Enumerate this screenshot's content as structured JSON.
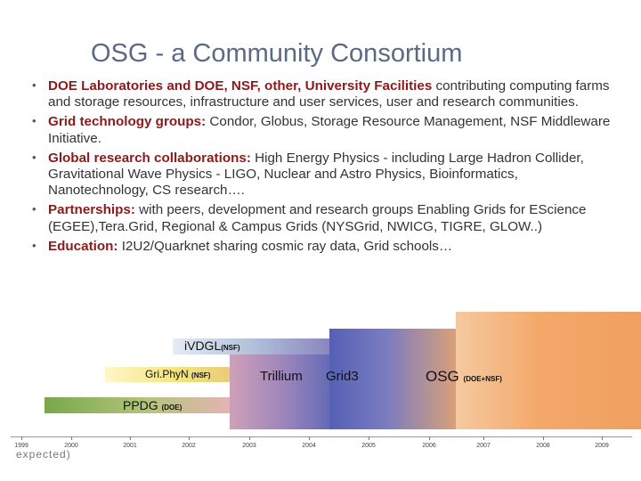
{
  "title": "OSG  - a Community Consortium",
  "bullets": [
    {
      "bold": "DOE Laboratories and DOE, NSF, other, University Facilities",
      "text": " contributing computing farms and storage resources, infrastructure and user services, user and research communities."
    },
    {
      "bold": "Grid technology groups:",
      "text": " Condor, Globus, Storage Resource Management, NSF Middleware Initiative."
    },
    {
      "bold": "Global research collaborations:",
      "text": "  High Energy Physics - including Large Hadron Collider, Gravitational Wave Physics - LIGO, Nuclear  and  Astro Physics, Bioinformatics, Nanotechnology, CS research…."
    },
    {
      "bold": "Partnerships:",
      "text": " with peers, development and research groups Enabling Grids for EScience (EGEE),Tera.Grid, Regional & Campus Grids (NYSGrid, NWICG, TIGRE, GLOW..)"
    },
    {
      "bold": "Education:",
      "text": "  I2U2/Quarknet sharing cosmic ray data, Grid schools…"
    }
  ],
  "timeline": {
    "years": [
      "1999",
      "2000",
      "2001",
      "2002",
      "2003",
      "2004",
      "2005",
      "2006",
      "2007",
      "2008",
      "2009"
    ],
    "ivdgl": {
      "name": "iVDGL",
      "sponsor": "(NSF)"
    },
    "griphyn": {
      "name": "Gri.PhyN",
      "sponsor": "(NSF)"
    },
    "ppdg": {
      "name": "PPDG",
      "sponsor": "(DOE)"
    },
    "trillium": "Trillium",
    "grid3": "Grid3",
    "osg": {
      "name": "OSG",
      "sponsor": "(DOE+NSF)"
    },
    "stray_text": "expected)",
    "colors": {
      "ivdgl": "#8aa0c8",
      "griphyn": "#f2e47a",
      "ppdg": "#78a84a",
      "trillium": "#8a78b8",
      "grid3": "#5a66b4",
      "osg": "#f0a060"
    }
  }
}
